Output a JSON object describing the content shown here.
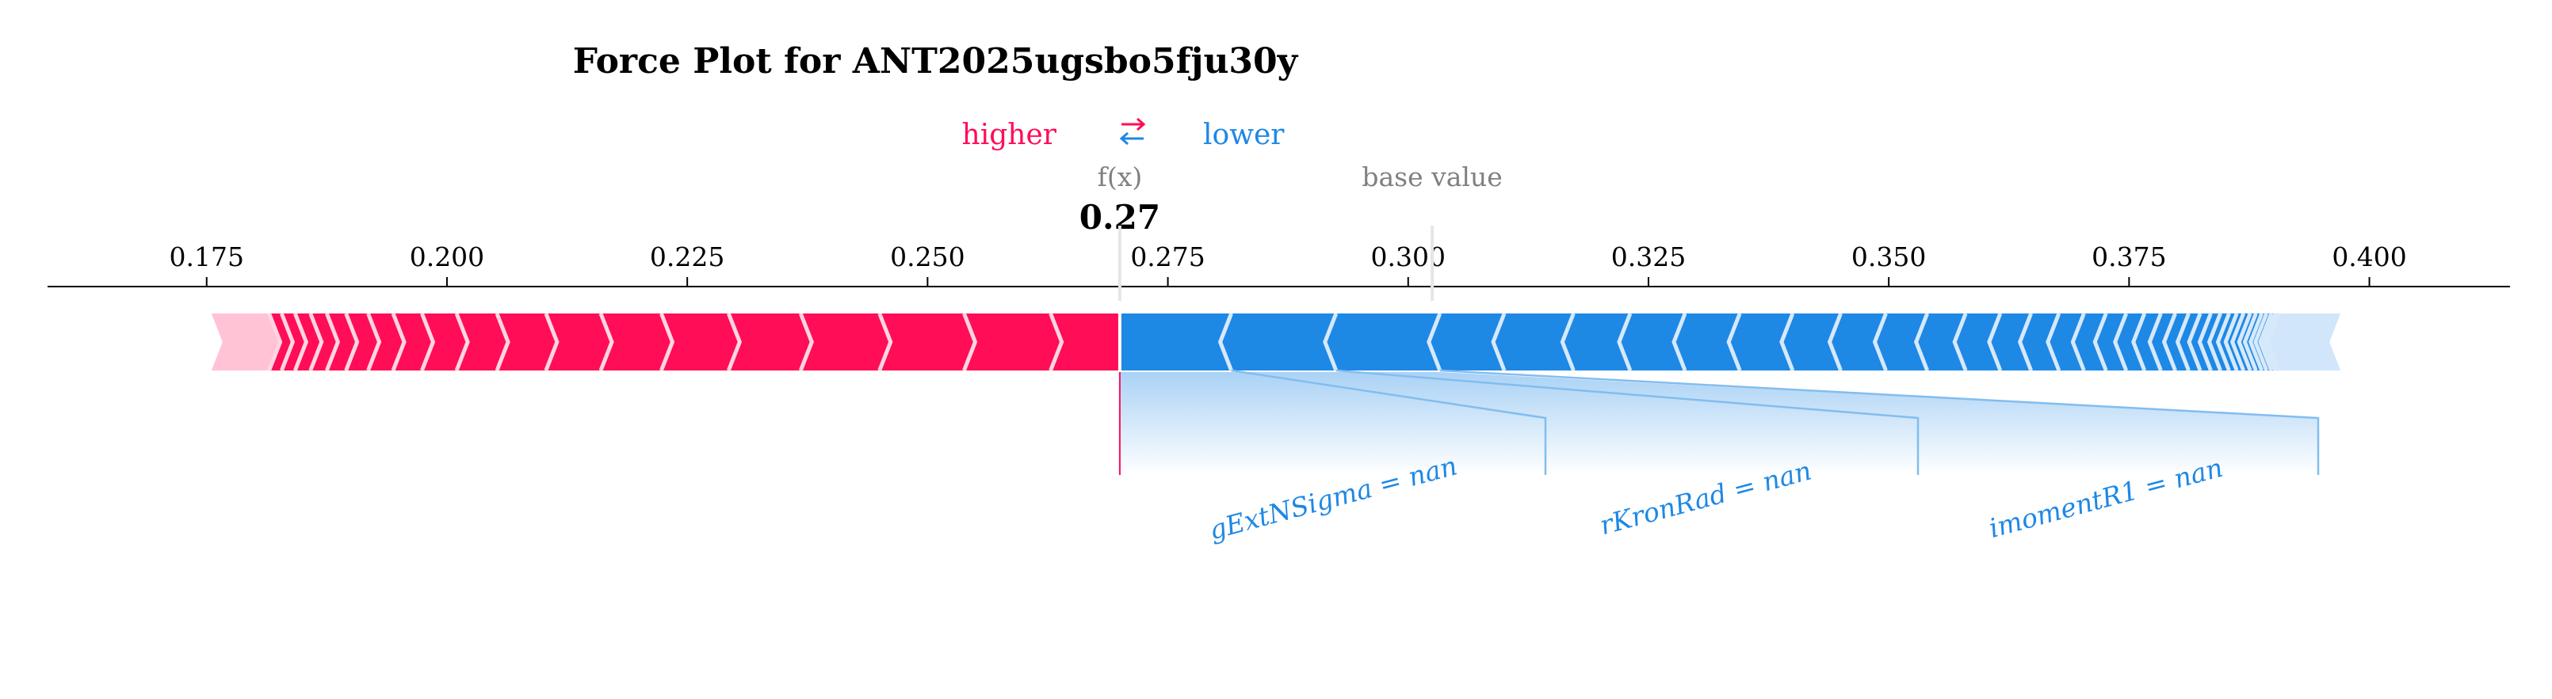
{
  "chart_data": {
    "type": "force",
    "title": "Force Plot for ANT2025ugsbo5fju30y",
    "legend": {
      "higher": "higher",
      "lower": "lower",
      "arrow_icon": "swap-arrows-icon"
    },
    "output_label": "f(x)",
    "output_value": 0.27,
    "output_value_text": "0.27",
    "base_value_label": "base value",
    "base_value": 0.3025,
    "xlim": [
      0.1535,
      0.419
    ],
    "ticks": [
      0.175,
      0.2,
      0.225,
      0.25,
      0.275,
      0.3,
      0.325,
      0.35,
      0.375,
      0.4
    ],
    "tick_labels": [
      "0.175",
      "0.200",
      "0.225",
      "0.250",
      "0.275",
      "0.300",
      "0.325",
      "0.350",
      "0.375",
      "0.400"
    ],
    "positive_bar": {
      "start": 0.1755,
      "end": 0.27
    },
    "negative_bar": {
      "start": 0.27,
      "end": 0.397
    },
    "positive_chevrons": [
      0.1815,
      0.1828,
      0.1842,
      0.1858,
      0.1875,
      0.1895,
      0.1918,
      0.1944,
      0.1974,
      0.201,
      0.2052,
      0.2103,
      0.216,
      0.2223,
      0.2293,
      0.2368,
      0.245,
      0.2538,
      0.2628
    ],
    "negative_chevrons": [
      0.2816,
      0.2925,
      0.3033,
      0.31,
      0.3172,
      0.3231,
      0.3288,
      0.3345,
      0.34,
      0.345,
      0.3497,
      0.354,
      0.358,
      0.3616,
      0.3648,
      0.3677,
      0.3703,
      0.3726,
      0.3747,
      0.3766,
      0.3783,
      0.3798,
      0.3812,
      0.3824,
      0.3835,
      0.3845,
      0.3854,
      0.3862,
      0.3869,
      0.3876,
      0.3882,
      0.3888,
      0.3893,
      0.3898,
      0.3902,
      0.3906
    ],
    "negative_features": [
      {
        "label": "gExtNSigma = nan",
        "start": 0.27,
        "end": 0.2816
      },
      {
        "label": "rKronRad = nan",
        "start": 0.2816,
        "end": 0.2925
      },
      {
        "label": "imomentR1 = nan",
        "start": 0.2925,
        "end": 0.3033
      }
    ],
    "colors": {
      "positive": "#ff0d57",
      "positive_faded": "#ffc3d5",
      "negative": "#1e88e5",
      "negative_faded": "#d1e6fa",
      "gray": "#808080",
      "axis": "#000000"
    }
  }
}
